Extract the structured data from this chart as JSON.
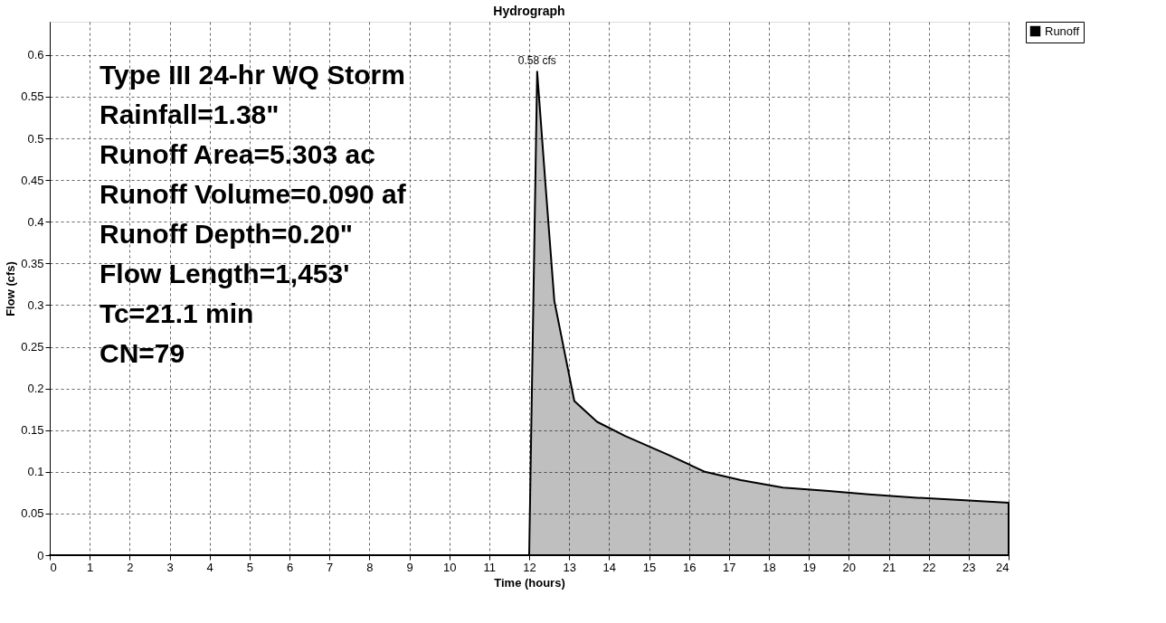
{
  "chart_data": {
    "type": "area",
    "title": "Hydrograph",
    "xlabel": "Time (hours)",
    "ylabel": "Flow (cfs)",
    "x": [
      0,
      12.0,
      12.2,
      12.4,
      12.63,
      13.13,
      13.7,
      14.4,
      15.5,
      16.4,
      17.3,
      18.35,
      19.5,
      20.5,
      21.7,
      22.9,
      24
    ],
    "series": [
      {
        "name": "Runoff",
        "color": "#000000",
        "values": [
          0,
          0,
          0.58,
          0.45,
          0.305,
          0.185,
          0.16,
          0.143,
          0.12,
          0.1,
          0.09,
          0.081,
          0.077,
          0.073,
          0.069,
          0.066,
          0.063
        ],
        "value_labels": [
          null,
          null,
          "0.58 cfs",
          null,
          null,
          null,
          null,
          null,
          null,
          null,
          null,
          null,
          null,
          null,
          null,
          null,
          null
        ]
      }
    ],
    "xlim": [
      0,
      24
    ],
    "xticks": [
      0,
      1,
      2,
      3,
      4,
      5,
      6,
      7,
      8,
      9,
      10,
      11,
      12,
      13,
      14,
      15,
      16,
      17,
      18,
      19,
      20,
      21,
      22,
      23,
      24
    ],
    "ylim": [
      0,
      0.64
    ],
    "yticks": [
      0,
      0.05,
      0.1,
      0.15,
      0.2,
      0.25,
      0.3,
      0.35,
      0.4,
      0.45,
      0.5,
      0.55,
      0.6
    ],
    "grid": true,
    "legend": "top right",
    "annotations": [
      "Type III 24-hr WQ Storm",
      "Rainfall=1.38\"",
      "Runoff Area=5.303 ac",
      "Runoff Volume=0.090 af",
      "Runoff Depth=0.20\"",
      "Flow Length=1,453'",
      "Tc=21.1 min",
      "CN=79"
    ]
  }
}
